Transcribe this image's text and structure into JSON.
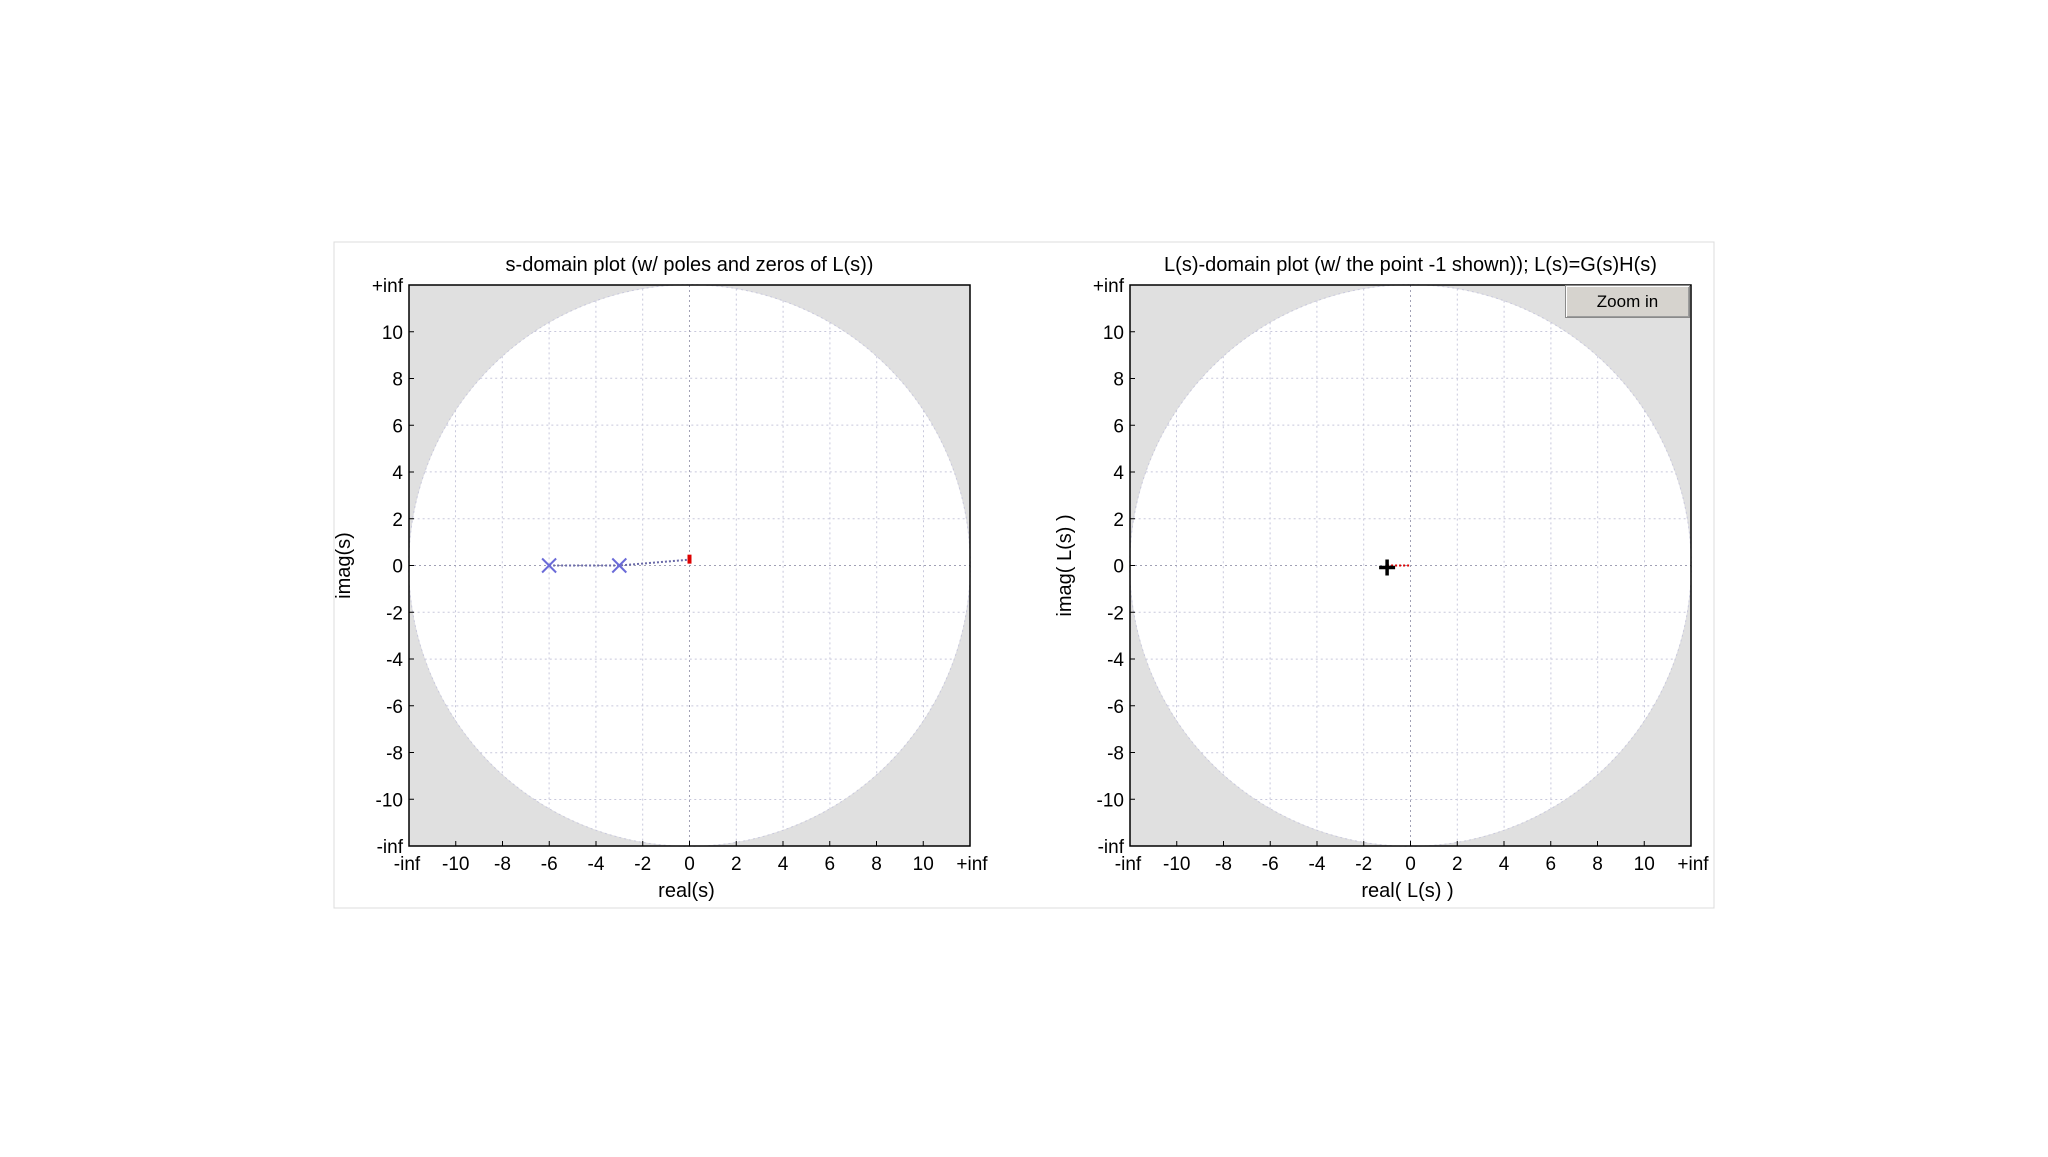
{
  "colors": {
    "pole": "#6a6ad8",
    "trace": "#6a6aa8",
    "grid": "#c8c8dc",
    "axis": "#000000",
    "ring": "#e0e0e0",
    "marker": "#dd0000",
    "critical_point": "#000000"
  },
  "toolbar": {
    "zoom_label": "Zoom in"
  },
  "chart_data": [
    {
      "type": "scatter",
      "title": "s-domain plot (w/ poles and zeros of L(s))",
      "xlabel": "real(s)",
      "ylabel": "imag(s)",
      "xlim": [
        -12,
        12
      ],
      "ylim": [
        -12,
        12
      ],
      "grid": true,
      "x_ticks": [
        "-inf",
        "-10",
        "-8",
        "-6",
        "-4",
        "-2",
        "0",
        "2",
        "4",
        "6",
        "8",
        "10",
        "+inf"
      ],
      "y_ticks": [
        "+inf",
        "10",
        "8",
        "6",
        "4",
        "2",
        "0",
        "-2",
        "-4",
        "-6",
        "-8",
        "-10",
        "-inf"
      ],
      "poles": [
        {
          "x": -6,
          "y": 0
        },
        {
          "x": -3,
          "y": 0
        }
      ],
      "trace": [
        {
          "x": -6,
          "y": 0
        },
        {
          "x": -3,
          "y": 0
        },
        {
          "x": 0,
          "y": 0.25
        }
      ],
      "marker": {
        "x": 0,
        "y": 0.25
      }
    },
    {
      "type": "scatter",
      "title": "L(s)-domain plot (w/ the point -1 shown)); L(s)=G(s)H(s)",
      "xlabel": "real( L(s) )",
      "ylabel": "imag( L(s) )",
      "xlim": [
        -12,
        12
      ],
      "ylim": [
        -12,
        12
      ],
      "grid": true,
      "x_ticks": [
        "-inf",
        "-10",
        "-8",
        "-6",
        "-4",
        "-2",
        "0",
        "2",
        "4",
        "6",
        "8",
        "10",
        "+inf"
      ],
      "y_ticks": [
        "+inf",
        "10",
        "8",
        "6",
        "4",
        "2",
        "0",
        "-2",
        "-4",
        "-6",
        "-8",
        "-10",
        "-inf"
      ],
      "critical_point": {
        "x": -1,
        "y": 0
      },
      "trace": [
        {
          "x": -1,
          "y": 0
        },
        {
          "x": 0,
          "y": 0
        }
      ]
    }
  ]
}
